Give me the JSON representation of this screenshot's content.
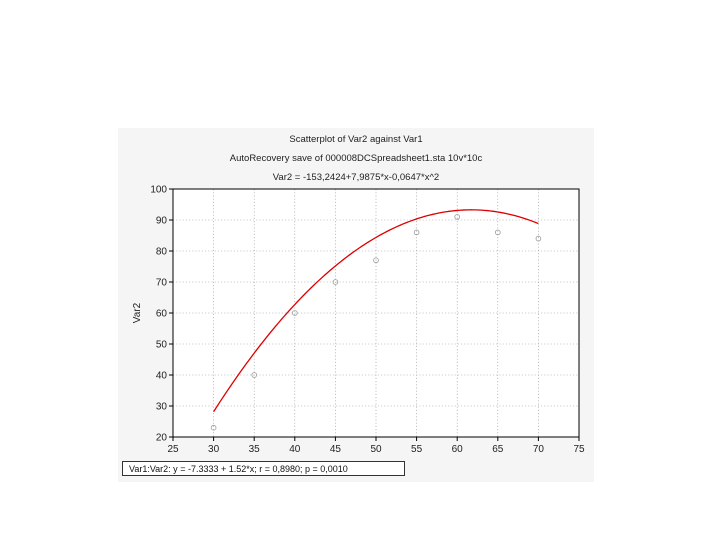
{
  "chart_data": {
    "type": "scatter",
    "title": "Scatterplot of Var2 against Var1",
    "subtitle": "AutoRecovery save of 000008DCSpreadsheet1.sta 10v*10c",
    "equation": "Var2 = -153,2424+7,9875*x-0,0647*x^2",
    "xlabel": "",
    "ylabel": "Var2",
    "xlim": [
      25,
      75
    ],
    "ylim": [
      20,
      100
    ],
    "xticks": [
      25,
      30,
      35,
      40,
      45,
      50,
      55,
      60,
      65,
      70,
      75
    ],
    "yticks": [
      20,
      30,
      40,
      50,
      60,
      70,
      80,
      90,
      100
    ],
    "grid": true,
    "series": [
      {
        "x": [
          30,
          35,
          40,
          45,
          50,
          55,
          60,
          65,
          70
        ],
        "y": [
          23,
          40,
          60,
          70,
          77,
          86,
          91,
          86,
          84
        ],
        "color": "#999999",
        "marker": "hollow-circle"
      }
    ],
    "fit": {
      "type": "quadratic",
      "coefficients": [
        -153.2424,
        7.9875,
        -0.0647
      ],
      "x_range": [
        30,
        70
      ],
      "color": "#dd0000"
    },
    "stats_label": "Var1:Var2:   y = -7.3333 + 1.52*x;  r = 0,8980; p = 0,0010"
  }
}
